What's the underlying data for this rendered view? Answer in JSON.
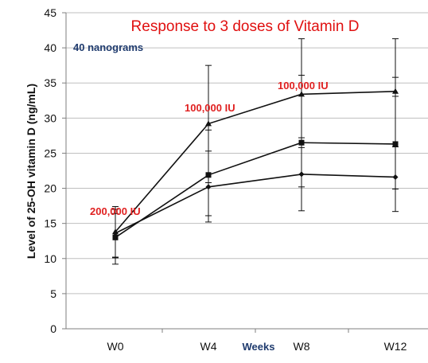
{
  "chart_data": {
    "type": "line",
    "title": "Response to 3 doses of Vitamin D",
    "ylabel": "Level of 25-OH vitamin D (ng/mL)",
    "xlabel": "Weeks",
    "categories": [
      "W0",
      "W4",
      "W8",
      "W12"
    ],
    "ylim": [
      0,
      45
    ],
    "yticks": [
      0,
      5,
      10,
      15,
      20,
      25,
      30,
      35,
      40,
      45
    ],
    "grid": true,
    "series": [
      {
        "marker": "triangle",
        "values": [
          13.8,
          29.2,
          33.4,
          33.8
        ],
        "error_low": [
          10.2,
          20.8,
          25.8,
          25.9
        ],
        "error_high": [
          17.4,
          37.5,
          41.3,
          41.3
        ]
      },
      {
        "marker": "square",
        "values": [
          13.0,
          21.9,
          26.5,
          26.3
        ],
        "error_low": [
          9.2,
          15.2,
          16.8,
          16.7
        ],
        "error_high": [
          17.0,
          28.3,
          36.1,
          35.8
        ]
      },
      {
        "marker": "diamond",
        "values": [
          13.6,
          20.2,
          22.0,
          21.6
        ],
        "error_low": [
          10.1,
          16.1,
          20.2,
          19.9
        ],
        "error_high": [
          16.4,
          25.3,
          27.2,
          33.1
        ]
      }
    ],
    "annotations": [
      {
        "text": "40 nanograms",
        "style": "blue"
      },
      {
        "text": "200,000 IU",
        "style": "red"
      },
      {
        "text": "100,000 IU",
        "style": "red"
      },
      {
        "text": "100,000 IU",
        "style": "red"
      }
    ],
    "colors": {
      "line": "#111111",
      "grid": "#bfbfbf",
      "title": "#e01010",
      "annotation": "#e02020",
      "annotation_blue": "#1f3b6e"
    }
  }
}
